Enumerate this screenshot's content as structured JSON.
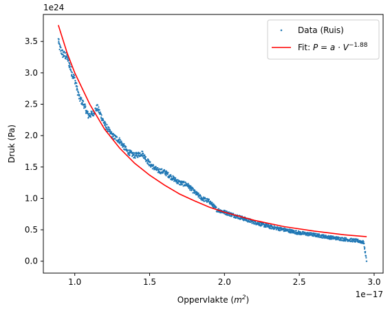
{
  "chart_data": {
    "type": "scatter",
    "xlabel": "Oppervlakte (m²)",
    "xlabel_base": "Oppervlakte (",
    "xlabel_unit": "m",
    "xlabel_exp": "2",
    "xlabel_close": ")",
    "ylabel": "Druk (Pa)",
    "x_offset_text": "1e−17",
    "y_offset_text": "1e24",
    "x_scale_exp": -17,
    "y_scale_exp": 24,
    "xlim": [
      0.79,
      3.06
    ],
    "ylim": [
      -0.19,
      3.93
    ],
    "x_ticks": [
      1.0,
      1.5,
      2.0,
      2.5,
      3.0
    ],
    "x_tick_labels": [
      "1.0",
      "1.5",
      "2.0",
      "2.5",
      "3.0"
    ],
    "y_ticks": [
      0.0,
      0.5,
      1.0,
      1.5,
      2.0,
      2.5,
      3.0,
      3.5
    ],
    "y_tick_labels": [
      "0.0",
      "0.5",
      "1.0",
      "1.5",
      "2.0",
      "2.5",
      "3.0",
      "3.5"
    ],
    "grid": false,
    "legend_position": "top-right",
    "series": [
      {
        "name": "Data (Ruis)",
        "kind": "scatter",
        "color": "#1f77b4",
        "x": [
          0.89,
          0.9,
          0.92,
          0.95,
          0.98,
          1.0,
          1.03,
          1.06,
          1.09,
          1.12,
          1.15,
          1.17,
          1.2,
          1.25,
          1.3,
          1.35,
          1.4,
          1.45,
          1.5,
          1.55,
          1.6,
          1.65,
          1.7,
          1.75,
          1.8,
          1.85,
          1.9,
          1.95,
          2.0,
          2.05,
          2.1,
          2.2,
          2.3,
          2.4,
          2.5,
          2.6,
          2.7,
          2.8,
          2.9,
          2.93,
          2.94,
          2.95
        ],
        "y": [
          3.52,
          3.4,
          3.3,
          3.25,
          3.0,
          2.9,
          2.6,
          2.5,
          2.32,
          2.35,
          2.45,
          2.35,
          2.18,
          2.0,
          1.92,
          1.75,
          1.68,
          1.72,
          1.55,
          1.45,
          1.42,
          1.33,
          1.25,
          1.22,
          1.1,
          1.0,
          0.95,
          0.82,
          0.78,
          0.74,
          0.7,
          0.62,
          0.55,
          0.5,
          0.45,
          0.42,
          0.38,
          0.35,
          0.32,
          0.3,
          0.15,
          0.0
        ]
      },
      {
        "name": "Fit: P = a · V^−1.88",
        "name_prefix": "Fit: ",
        "name_formula": "P = a · V",
        "name_exponent": "−1.88",
        "kind": "line",
        "color": "#ff0000",
        "exponent": -1.88,
        "x": [
          0.89,
          0.95,
          1.0,
          1.1,
          1.2,
          1.3,
          1.4,
          1.5,
          1.6,
          1.7,
          1.8,
          1.9,
          2.0,
          2.2,
          2.4,
          2.6,
          2.8,
          2.95
        ],
        "y": [
          3.76,
          3.31,
          3.0,
          2.5,
          2.1,
          1.8,
          1.56,
          1.37,
          1.21,
          1.07,
          0.96,
          0.86,
          0.78,
          0.65,
          0.55,
          0.48,
          0.42,
          0.39
        ]
      }
    ]
  }
}
